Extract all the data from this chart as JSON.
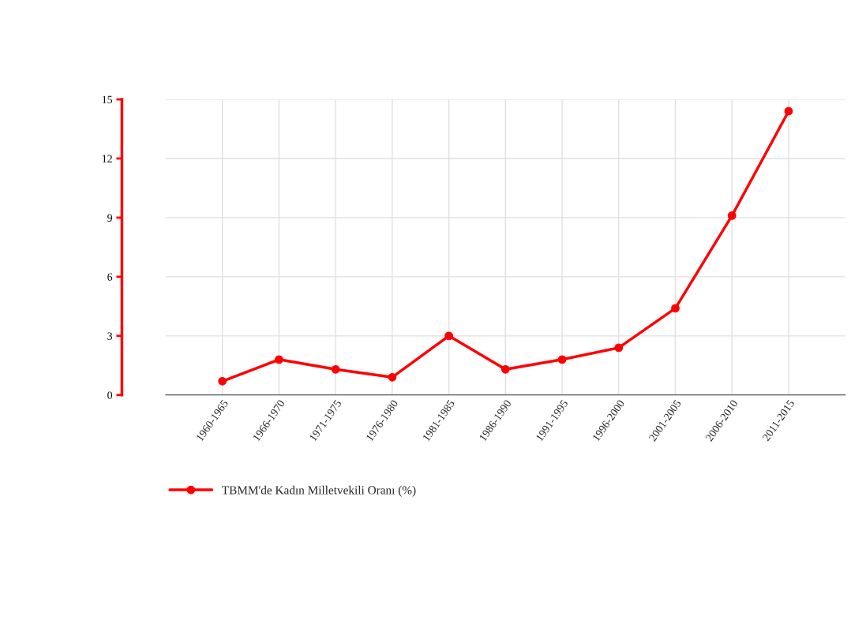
{
  "chart_data": {
    "type": "line",
    "categories": [
      "1960-1965",
      "1966-1970",
      "1971-1975",
      "1976-1980",
      "1981-1985",
      "1986-1990",
      "1991-1995",
      "1996-2000",
      "2001-2005",
      "2006-2010",
      "2011-2015"
    ],
    "series": [
      {
        "name": "TBMM'de Kadın Milletvekili Oranı (%)",
        "color": "#ff0000",
        "values": [
          0.7,
          1.8,
          1.3,
          0.9,
          3.0,
          1.3,
          1.8,
          2.4,
          4.4,
          9.1,
          14.4
        ]
      }
    ],
    "ylim": [
      0,
      15
    ],
    "yticks": [
      0,
      3,
      6,
      9,
      12,
      15
    ],
    "grid": true,
    "legend": "bottom left",
    "marker": "circle",
    "line_style": "solid"
  }
}
